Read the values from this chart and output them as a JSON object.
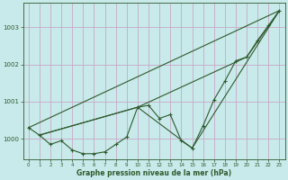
{
  "title": "Graphe pression niveau de la mer (hPa)",
  "bg_color": "#c8eaea",
  "grid_color": "#c8a8c8",
  "line_color": "#2d5a2d",
  "marker_color": "#2d5a2d",
  "xlim": [
    -0.5,
    23.5
  ],
  "ylim": [
    999.45,
    1003.65
  ],
  "yticks": [
    1000,
    1001,
    1002,
    1003
  ],
  "xticks": [
    0,
    1,
    2,
    3,
    4,
    5,
    6,
    7,
    8,
    9,
    10,
    11,
    12,
    13,
    14,
    15,
    16,
    17,
    18,
    19,
    20,
    21,
    22,
    23
  ],
  "series_main": {
    "x": [
      0,
      1,
      2,
      3,
      4,
      5,
      6,
      7,
      8,
      9,
      10,
      11,
      12,
      13,
      14,
      15,
      16,
      17,
      18,
      19,
      20,
      21,
      22,
      23
    ],
    "y": [
      1000.3,
      1000.1,
      999.85,
      999.95,
      999.7,
      999.6,
      999.6,
      999.65,
      999.85,
      1000.05,
      1000.85,
      1000.9,
      1000.55,
      1000.65,
      999.95,
      999.75,
      1000.35,
      1001.05,
      1001.55,
      1002.1,
      1002.2,
      1002.65,
      1003.05,
      1003.45
    ]
  },
  "series_line1": {
    "x": [
      0,
      23
    ],
    "y": [
      1000.3,
      1003.45
    ]
  },
  "series_line2": {
    "x": [
      1,
      10,
      15,
      23
    ],
    "y": [
      1000.1,
      1000.85,
      999.75,
      1003.45
    ]
  },
  "series_line3": {
    "x": [
      1,
      10,
      20,
      23
    ],
    "y": [
      1000.1,
      1000.85,
      1002.2,
      1003.45
    ]
  }
}
